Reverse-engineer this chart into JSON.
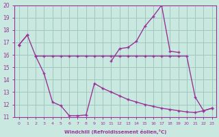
{
  "xlabel": "Windchill (Refroidissement éolien,°C)",
  "background_color": "#c8e8e0",
  "grid_color": "#a0c8c0",
  "line_color": "#993399",
  "x_values": [
    0,
    1,
    2,
    3,
    4,
    5,
    6,
    7,
    8,
    9,
    10,
    11,
    12,
    13,
    14,
    15,
    16,
    17,
    18,
    19,
    20,
    21,
    22,
    23
  ],
  "curve_top": [
    16.8,
    17.6,
    null,
    null,
    null,
    null,
    null,
    null,
    null,
    null,
    null,
    15.5,
    16.5,
    16.6,
    17.1,
    18.3,
    19.1,
    20.0,
    16.3,
    16.2,
    null,
    null,
    null,
    null
  ],
  "curve_mid": [
    null,
    null,
    15.9,
    15.9,
    15.9,
    15.9,
    15.9,
    15.9,
    15.9,
    15.9,
    15.9,
    15.9,
    15.9,
    15.9,
    15.9,
    15.9,
    15.9,
    15.9,
    15.9,
    15.9,
    15.9,
    12.6,
    11.5,
    11.7
  ],
  "curve_bot": [
    16.8,
    17.6,
    15.9,
    14.5,
    12.2,
    11.9,
    11.1,
    11.1,
    11.15,
    13.7,
    13.3,
    13.0,
    12.7,
    12.4,
    12.2,
    12.0,
    11.85,
    11.7,
    11.6,
    11.5,
    11.4,
    11.35,
    11.5,
    11.7
  ],
  "ylim": [
    11,
    20
  ],
  "yticks": [
    11,
    12,
    13,
    14,
    15,
    16,
    17,
    18,
    19,
    20
  ]
}
